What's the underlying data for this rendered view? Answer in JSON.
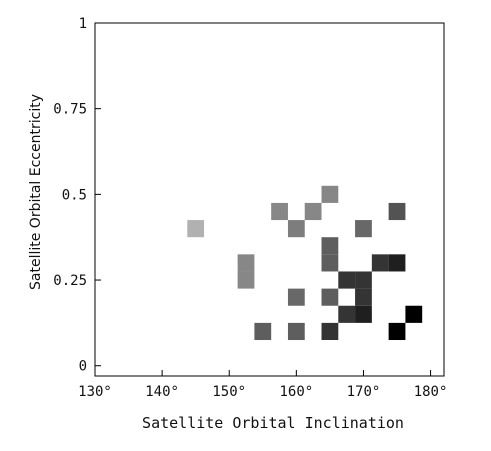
{
  "chart_data": {
    "type": "heatmap",
    "title": "",
    "xlabel": "Satellite Orbital Inclination",
    "ylabel": "Satellite Orbital Eccentricity",
    "xlim": [
      130,
      182
    ],
    "ylim": [
      -0.03,
      1
    ],
    "x_ticks": [
      {
        "value": 130,
        "label": "130°"
      },
      {
        "value": 140,
        "label": "140°"
      },
      {
        "value": 150,
        "label": "150°"
      },
      {
        "value": 160,
        "label": "160°"
      },
      {
        "value": 170,
        "label": "170°"
      },
      {
        "value": 180,
        "label": "180°"
      }
    ],
    "y_ticks": [
      {
        "value": 0,
        "label": "0"
      },
      {
        "value": 0.25,
        "label": "0.25"
      },
      {
        "value": 0.5,
        "label": "0.5"
      },
      {
        "value": 0.75,
        "label": "0.75"
      },
      {
        "value": 1,
        "label": "1"
      }
    ],
    "cell_width": 2.5,
    "cell_height": 0.05,
    "grid": false,
    "colors": {
      "frame": "#000000",
      "background": "#ffffff",
      "cell_min": "#d0d0d0",
      "cell_max": "#000000"
    },
    "cells": [
      {
        "x": 145,
        "y": 0.4,
        "value": 0.15
      },
      {
        "x": 152.5,
        "y": 0.3,
        "value": 0.35
      },
      {
        "x": 152.5,
        "y": 0.25,
        "value": 0.35
      },
      {
        "x": 157.5,
        "y": 0.45,
        "value": 0.35
      },
      {
        "x": 160,
        "y": 0.4,
        "value": 0.4
      },
      {
        "x": 162.5,
        "y": 0.45,
        "value": 0.35
      },
      {
        "x": 165,
        "y": 0.5,
        "value": 0.35
      },
      {
        "x": 165,
        "y": 0.35,
        "value": 0.55
      },
      {
        "x": 165,
        "y": 0.3,
        "value": 0.55
      },
      {
        "x": 167.5,
        "y": 0.25,
        "value": 0.75
      },
      {
        "x": 170,
        "y": 0.25,
        "value": 0.75
      },
      {
        "x": 170,
        "y": 0.4,
        "value": 0.5
      },
      {
        "x": 172.5,
        "y": 0.3,
        "value": 0.75
      },
      {
        "x": 175,
        "y": 0.3,
        "value": 0.85
      },
      {
        "x": 175,
        "y": 0.45,
        "value": 0.6
      },
      {
        "x": 160,
        "y": 0.2,
        "value": 0.5
      },
      {
        "x": 165,
        "y": 0.2,
        "value": 0.55
      },
      {
        "x": 170,
        "y": 0.2,
        "value": 0.75
      },
      {
        "x": 167.5,
        "y": 0.15,
        "value": 0.75
      },
      {
        "x": 170,
        "y": 0.15,
        "value": 0.85
      },
      {
        "x": 155,
        "y": 0.1,
        "value": 0.55
      },
      {
        "x": 160,
        "y": 0.1,
        "value": 0.55
      },
      {
        "x": 165,
        "y": 0.1,
        "value": 0.75
      },
      {
        "x": 175,
        "y": 0.1,
        "value": 1.0
      },
      {
        "x": 177.5,
        "y": 0.15,
        "value": 1.0
      }
    ]
  }
}
